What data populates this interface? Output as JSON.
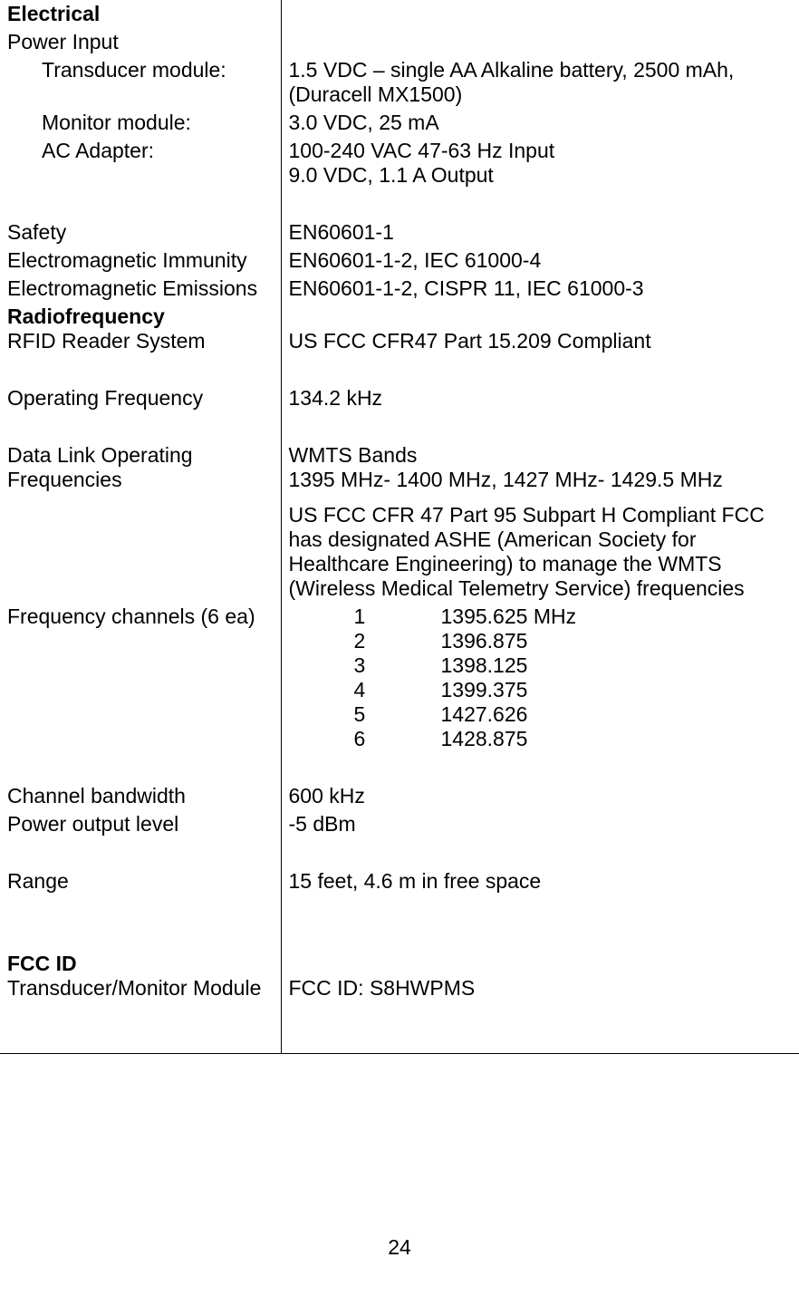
{
  "electrical": {
    "heading": "Electrical",
    "power_input_label": "Power Input",
    "transducer_label": "Transducer module:",
    "transducer_value": "1.5 VDC – single AA Alkaline battery, 2500 mAh, (Duracell MX1500)",
    "monitor_label": "Monitor module:",
    "monitor_value": "3.0 VDC, 25 mA",
    "ac_adapter_label": "AC Adapter:",
    "ac_adapter_value_1": "100-240 VAC 47-63 Hz Input",
    "ac_adapter_value_2": "9.0 VDC, 1.1 A Output",
    "safety_label": "Safety",
    "safety_value": "EN60601-1",
    "emi_label": "Electromagnetic Immunity",
    "emi_value": "EN60601-1-2, IEC 61000-4",
    "eme_label": "Electromagnetic Emissions",
    "eme_value": "EN60601-1-2, CISPR 11, IEC 61000-3"
  },
  "radiofrequency": {
    "heading": "Radiofrequency",
    "rfid_label": "RFID Reader System",
    "rfid_value": "US FCC CFR47 Part 15.209 Compliant",
    "op_freq_label": "Operating Frequency",
    "op_freq_value": "134.2 kHz",
    "datalink_label": "Data Link Operating Frequencies",
    "datalink_value_1": "WMTS Bands",
    "datalink_value_2": "1395 MHz- 1400 MHz, 1427 MHz- 1429.5 MHz",
    "compliance_text": "US FCC CFR 47 Part 95 Subpart H Compliant FCC has designated ASHE (American Society for Healthcare Engineering) to manage the WMTS (Wireless Medical Telemetry Service) frequencies",
    "freq_channels_label": "Frequency channels (6 ea)",
    "channels": [
      {
        "num": "1",
        "val": "1395.625 MHz"
      },
      {
        "num": "2",
        "val": "1396.875"
      },
      {
        "num": "3",
        "val": "1398.125"
      },
      {
        "num": "4",
        "val": "1399.375"
      },
      {
        "num": "5",
        "val": "1427.626"
      },
      {
        "num": "6",
        "val": "1428.875"
      }
    ],
    "bandwidth_label": "Channel bandwidth",
    "bandwidth_value": "600 kHz",
    "power_output_label": "Power output level",
    "power_output_value": "-5 dBm",
    "range_label": "Range",
    "range_value": "15 feet, 4.6 m in free space"
  },
  "fcc": {
    "heading": "FCC ID",
    "module_label": "Transducer/Monitor Module",
    "fcc_id_value": "FCC ID: S8HWPMS"
  },
  "page_number": "24"
}
